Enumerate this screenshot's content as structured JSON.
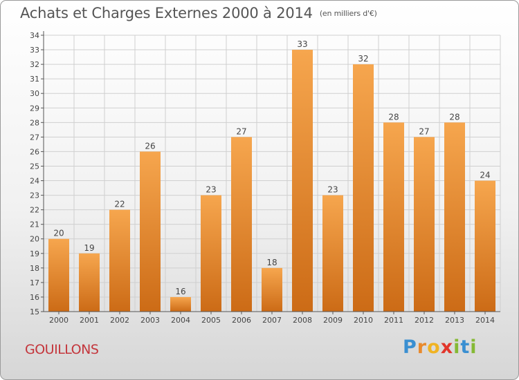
{
  "header": {
    "title": "Achats et Charges Externes 2000 à 2014",
    "subtitle": "(en milliers d'€)"
  },
  "footer": {
    "place": "GOUILLONS",
    "logo": {
      "letters": [
        "P",
        "r",
        "o",
        "x",
        "i",
        "t",
        "i"
      ],
      "colors": [
        "#3a8fd1",
        "#e98a2c",
        "#f0b323",
        "#e2362b",
        "#85b935",
        "#3a8fd1",
        "#85b935"
      ]
    }
  },
  "colors": {
    "bar_top": "#f6a64e",
    "bar_bottom": "#cc6b16",
    "grid": "#cfcfcf",
    "axis": "#555555",
    "text": "#444444"
  },
  "chart_data": {
    "type": "bar",
    "categories": [
      "2000",
      "2001",
      "2002",
      "2003",
      "2004",
      "2005",
      "2006",
      "2007",
      "2008",
      "2009",
      "2010",
      "2011",
      "2012",
      "2013",
      "2014"
    ],
    "values": [
      20,
      19,
      22,
      26,
      16,
      23,
      27,
      18,
      33,
      23,
      32,
      28,
      27,
      28,
      24
    ],
    "title": "Achats et Charges Externes 2000 à 2014",
    "subtitle": "(en milliers d'€)",
    "ylim": [
      15,
      34
    ],
    "yticks": [
      15,
      16,
      17,
      18,
      19,
      20,
      21,
      22,
      23,
      24,
      25,
      26,
      27,
      28,
      29,
      30,
      31,
      32,
      33,
      34
    ],
    "grid": true,
    "data_labels": true
  }
}
